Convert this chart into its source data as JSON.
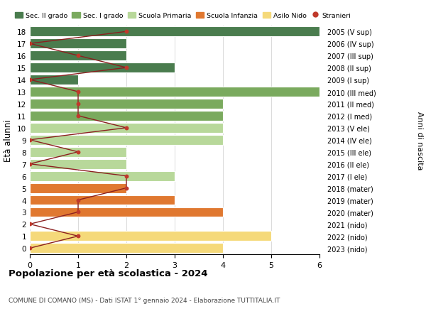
{
  "ages": [
    18,
    17,
    16,
    15,
    14,
    13,
    12,
    11,
    10,
    9,
    8,
    7,
    6,
    5,
    4,
    3,
    2,
    1,
    0
  ],
  "right_labels": [
    "2005 (V sup)",
    "2006 (IV sup)",
    "2007 (III sup)",
    "2008 (II sup)",
    "2009 (I sup)",
    "2010 (III med)",
    "2011 (II med)",
    "2012 (I med)",
    "2013 (V ele)",
    "2014 (IV ele)",
    "2015 (III ele)",
    "2016 (II ele)",
    "2017 (I ele)",
    "2018 (mater)",
    "2019 (mater)",
    "2020 (mater)",
    "2021 (nido)",
    "2022 (nido)",
    "2023 (nido)"
  ],
  "bar_values": [
    6,
    2,
    2,
    3,
    1,
    6,
    4,
    4,
    4,
    4,
    2,
    2,
    3,
    2,
    3,
    4,
    0,
    5,
    4
  ],
  "bar_colors": [
    "#4a7c4e",
    "#4a7c4e",
    "#4a7c4e",
    "#4a7c4e",
    "#4a7c4e",
    "#7aaa5e",
    "#7aaa5e",
    "#7aaa5e",
    "#b8d89a",
    "#b8d89a",
    "#b8d89a",
    "#b8d89a",
    "#b8d89a",
    "#e07830",
    "#e07830",
    "#e07830",
    "#f5d97a",
    "#f5d97a",
    "#f5d97a"
  ],
  "stranieri_values": [
    2,
    0,
    1,
    2,
    0,
    1,
    1,
    1,
    2,
    0,
    1,
    0,
    2,
    2,
    1,
    1,
    0,
    1,
    0
  ],
  "title": "Popolazione per età scolastica - 2024",
  "subtitle": "COMUNE DI COMANO (MS) - Dati ISTAT 1° gennaio 2024 - Elaborazione TUTTITALIA.IT",
  "ylabel": "Età alunni",
  "right_ylabel": "Anni di nascita",
  "xlim": [
    0,
    6
  ],
  "legend_labels": [
    "Sec. II grado",
    "Sec. I grado",
    "Scuola Primaria",
    "Scuola Infanzia",
    "Asilo Nido",
    "Stranieri"
  ],
  "legend_colors": [
    "#4a7c4e",
    "#7aaa5e",
    "#b8d89a",
    "#e07830",
    "#f5d97a",
    "#c0392b"
  ],
  "bar_height": 0.82,
  "bg_color": "#ffffff",
  "grid_color": "#cccccc",
  "stranieri_color": "#c0392b",
  "line_color": "#8b2020"
}
